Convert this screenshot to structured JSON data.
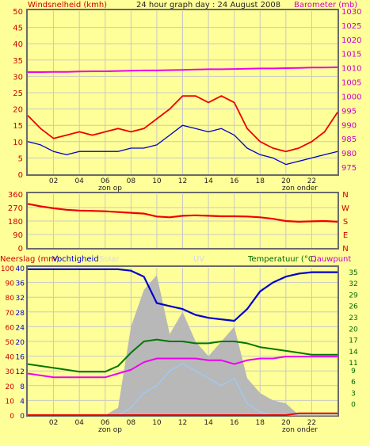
{
  "header": {
    "left_label": "Windsnelheid (kmh)",
    "title": "24 hour graph day : 24 August 2008",
    "right_label": "Barometer (mb)"
  },
  "colors": {
    "background": "#ffff99",
    "frame": "#6a6a6a",
    "grid": "#c8c8c8",
    "wind_gust": "#ee0000",
    "wind_avg": "#0000cc",
    "barometer": "#ee00ee",
    "wind_dir": "#ee0000",
    "humidity": "#0000cc",
    "temperature": "#007700",
    "dewpoint": "#ee00ee",
    "solar": "#b8b8b8",
    "uv": "#99ccff",
    "rain": "#ee0000",
    "label_red": "#cc0000",
    "label_magenta": "#cc00cc",
    "label_green": "#006600"
  },
  "x_axis": {
    "hour_ticks": [
      "02",
      "04",
      "06",
      "08",
      "10",
      "12",
      "14",
      "16",
      "18",
      "20",
      "22"
    ],
    "sunrise_label": "zon op",
    "sunset_label": "zon onder"
  },
  "panel3_header": {
    "rain_label": "Neerslag (mm)",
    "humidity_label": "Vochtigheid",
    "solar_label": "Solar",
    "uv_label": "UV",
    "temp_label": "Temperatuur (°C)",
    "dew_label": "Dauwpunt"
  },
  "chart_data": [
    {
      "type": "line",
      "title": "24 hour graph day : 24 August 2008",
      "ylabel": "Windsnelheid (kmh)",
      "ylabel_right": "Barometer (mb)",
      "x": [
        0,
        1,
        2,
        3,
        4,
        5,
        6,
        7,
        8,
        9,
        10,
        11,
        12,
        13,
        14,
        15,
        16,
        17,
        18,
        19,
        20,
        21,
        22,
        23,
        24
      ],
      "xlim": [
        0,
        24
      ],
      "ylim": [
        0,
        50
      ],
      "ylim_right": [
        972.5,
        1030
      ],
      "yticks": [
        0,
        5,
        10,
        15,
        20,
        25,
        30,
        35,
        40,
        45,
        50
      ],
      "yticks_right": [
        975,
        980,
        985,
        990,
        995,
        1000,
        1005,
        1010,
        1015,
        1020,
        1025,
        1030
      ],
      "series": [
        {
          "name": "gust",
          "axis": "left",
          "values": [
            18,
            14,
            11,
            12,
            13,
            12,
            13,
            14,
            13,
            14,
            17,
            20,
            24,
            24,
            22,
            24,
            22,
            14,
            10,
            8,
            7,
            8,
            10,
            13,
            19
          ]
        },
        {
          "name": "average",
          "axis": "left",
          "values": [
            10,
            9,
            7,
            6,
            7,
            7,
            7,
            7,
            8,
            8,
            9,
            12,
            15,
            14,
            13,
            14,
            12,
            8,
            6,
            5,
            3,
            4,
            5,
            6,
            7
          ]
        },
        {
          "name": "barometer",
          "axis": "right",
          "values": [
            1008.5,
            1008.5,
            1008.6,
            1008.6,
            1008.7,
            1008.8,
            1008.8,
            1008.9,
            1009.0,
            1009.1,
            1009.1,
            1009.2,
            1009.3,
            1009.4,
            1009.5,
            1009.5,
            1009.6,
            1009.7,
            1009.8,
            1009.8,
            1009.9,
            1010.0,
            1010.1,
            1010.1,
            1010.2
          ]
        }
      ]
    },
    {
      "type": "line",
      "ylabel_right": "N W S E N",
      "right_letters": [
        "N",
        "W",
        "S",
        "E",
        "N"
      ],
      "x": [
        0,
        1,
        2,
        3,
        4,
        5,
        6,
        7,
        8,
        9,
        10,
        11,
        12,
        13,
        14,
        15,
        16,
        17,
        18,
        19,
        20,
        21,
        22,
        23,
        24
      ],
      "xlim": [
        0,
        24
      ],
      "ylim": [
        0,
        360
      ],
      "yticks": [
        0,
        90,
        180,
        270,
        360
      ],
      "series": [
        {
          "name": "wind direction",
          "values": [
            295,
            278,
            265,
            255,
            250,
            248,
            245,
            240,
            235,
            230,
            210,
            205,
            215,
            218,
            215,
            212,
            212,
            210,
            205,
            195,
            180,
            175,
            178,
            180,
            175
          ]
        }
      ]
    },
    {
      "type": "line",
      "ylabel": "Neerslag (mm)",
      "ylabel_right": "Temperatuur (°C)",
      "x": [
        0,
        1,
        2,
        3,
        4,
        5,
        6,
        7,
        8,
        9,
        10,
        11,
        12,
        13,
        14,
        15,
        16,
        17,
        18,
        19,
        20,
        21,
        22,
        23,
        24
      ],
      "xlim": [
        0,
        24
      ],
      "ylim_humidity": [
        0,
        100
      ],
      "ylim_temp": [
        -3,
        36
      ],
      "yticks_humidity": [
        0,
        10,
        20,
        30,
        40,
        50,
        60,
        70,
        80,
        90,
        100
      ],
      "yticks_rain": [
        0,
        4,
        8,
        12,
        16,
        20,
        24,
        28,
        32,
        36,
        40
      ],
      "yticks_temp": [
        0,
        3,
        6,
        9,
        11,
        14,
        17,
        20,
        23,
        26,
        29,
        32,
        35
      ],
      "series": [
        {
          "name": "Vochtigheid",
          "axis": "humidity",
          "values": [
            99,
            99,
            99,
            99,
            99,
            99,
            99,
            99,
            98,
            94,
            76,
            74,
            72,
            68,
            66,
            65,
            64,
            72,
            84,
            90,
            94,
            96,
            97,
            97,
            97
          ]
        },
        {
          "name": "Temperatuur",
          "axis": "temp",
          "values": [
            10.5,
            10,
            9.5,
            9,
            8.5,
            8.5,
            8.5,
            10,
            13.5,
            16.5,
            17,
            16.5,
            16.5,
            16,
            16,
            16.5,
            16.5,
            16,
            15,
            14.5,
            14,
            13.5,
            13,
            13,
            13
          ]
        },
        {
          "name": "Dauwpunt",
          "axis": "temp",
          "values": [
            8,
            7.5,
            7,
            7,
            7,
            7,
            7,
            8,
            9,
            11,
            12,
            12,
            12,
            12,
            11.5,
            11.5,
            10.5,
            11.5,
            12,
            12,
            12.5,
            12.5,
            12.5,
            12.5,
            12.5
          ]
        },
        {
          "name": "Solar",
          "axis": "humidity",
          "values": [
            0,
            0,
            0,
            0,
            0,
            0,
            0,
            5,
            60,
            85,
            95,
            55,
            70,
            50,
            40,
            50,
            60,
            25,
            15,
            10,
            8,
            0,
            0,
            0,
            0
          ]
        },
        {
          "name": "UV",
          "axis": "humidity",
          "values": [
            0,
            0,
            0,
            0,
            0,
            0,
            0,
            0,
            5,
            15,
            20,
            30,
            35,
            30,
            25,
            20,
            25,
            8,
            2,
            0,
            0,
            0,
            0,
            0,
            0
          ]
        },
        {
          "name": "Neerslag",
          "axis": "rain",
          "values": [
            0,
            0,
            0,
            0,
            0,
            0,
            0,
            0,
            0,
            0,
            0,
            0,
            0,
            0,
            0,
            0,
            0,
            0,
            0,
            0,
            0,
            0.5,
            0.5,
            0.5,
            0.5
          ]
        }
      ]
    }
  ]
}
